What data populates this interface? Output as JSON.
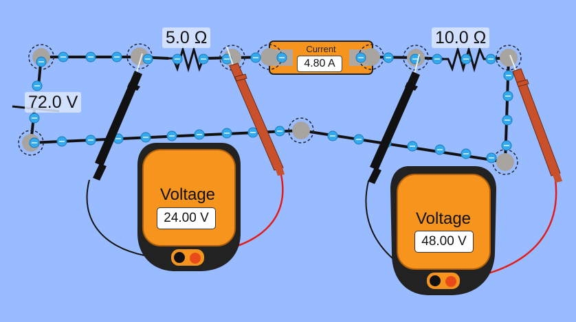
{
  "battery": {
    "label": "72.0 V"
  },
  "resistor1": {
    "label": "5.0 Ω"
  },
  "resistor2": {
    "label": "10.0 Ω"
  },
  "ammeter": {
    "title": "Current",
    "value": "4.80 A"
  },
  "voltmeter1": {
    "title": "Voltage",
    "value": "24.00 V"
  },
  "voltmeter2": {
    "title": "Voltage",
    "value": "48.00 V"
  },
  "colors": {
    "background": "#99bbff",
    "wire": "#111111",
    "electron": "#33aaee",
    "meter_body": "#f7941d",
    "meter_frame": "#222222",
    "probe_red": "#c8502a",
    "probe_black": "#111111",
    "lead_red": "#e21b1b"
  }
}
